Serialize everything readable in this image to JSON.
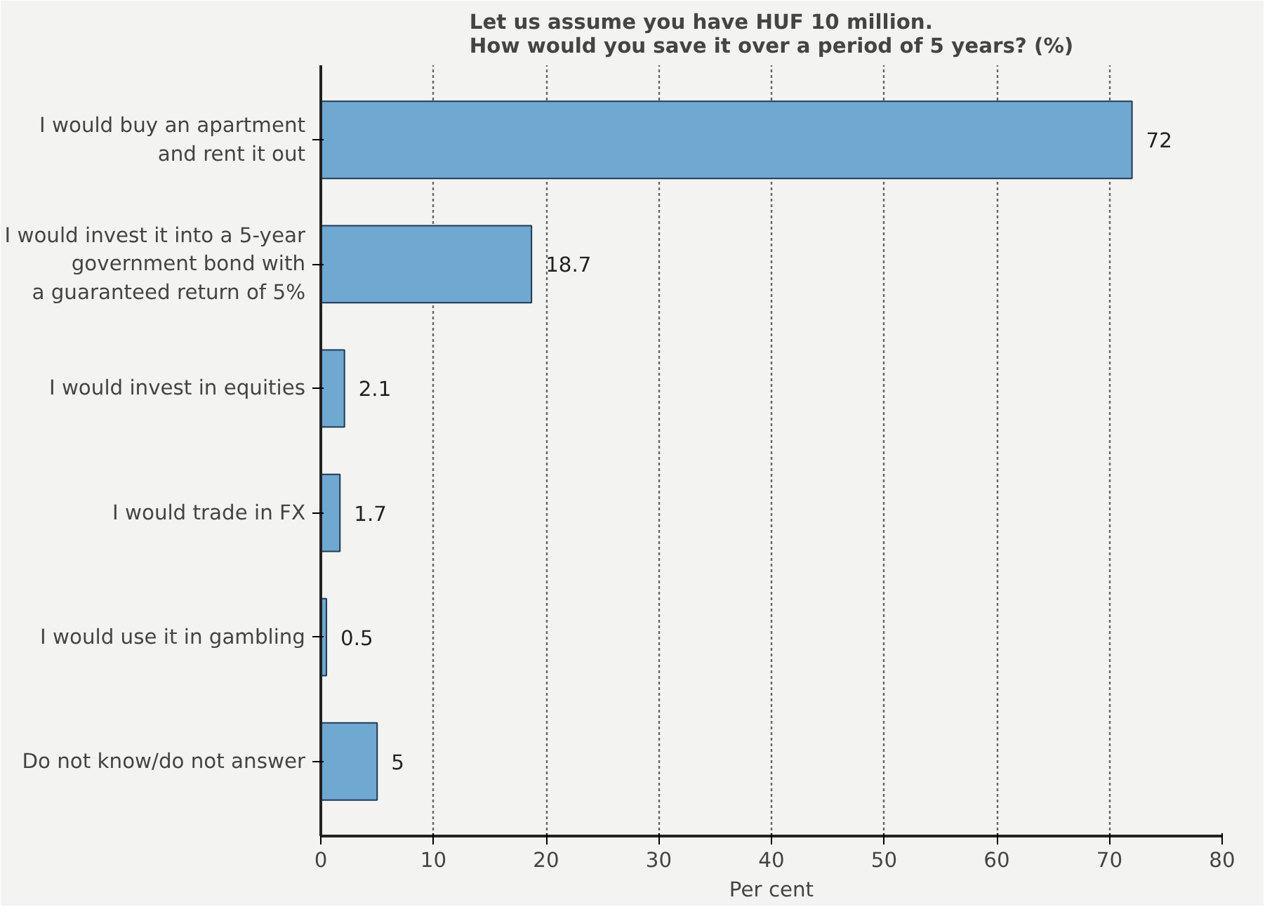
{
  "chart_data": {
    "type": "bar",
    "orientation": "horizontal",
    "title": "Let us assume you have HUF 10 million.\nHow would you save it over a period of 5 years? (%)",
    "xlabel": "Per cent",
    "categories": [
      "I would buy an apartment\nand rent it out",
      "I would invest it into a 5-year\ngovernment bond with\na guaranteed return of 5%",
      "I would invest in equities",
      "I would trade in FX",
      "I would use it in gambling",
      "Do not know/do not answer"
    ],
    "values": [
      72,
      18.7,
      2.1,
      1.7,
      0.5,
      5
    ],
    "color": "#6fa8d0",
    "xlim": [
      0,
      80
    ],
    "xticks": [
      0,
      10,
      20,
      30,
      40,
      50,
      60,
      70,
      80
    ],
    "grid": "x",
    "data_labels": true
  }
}
